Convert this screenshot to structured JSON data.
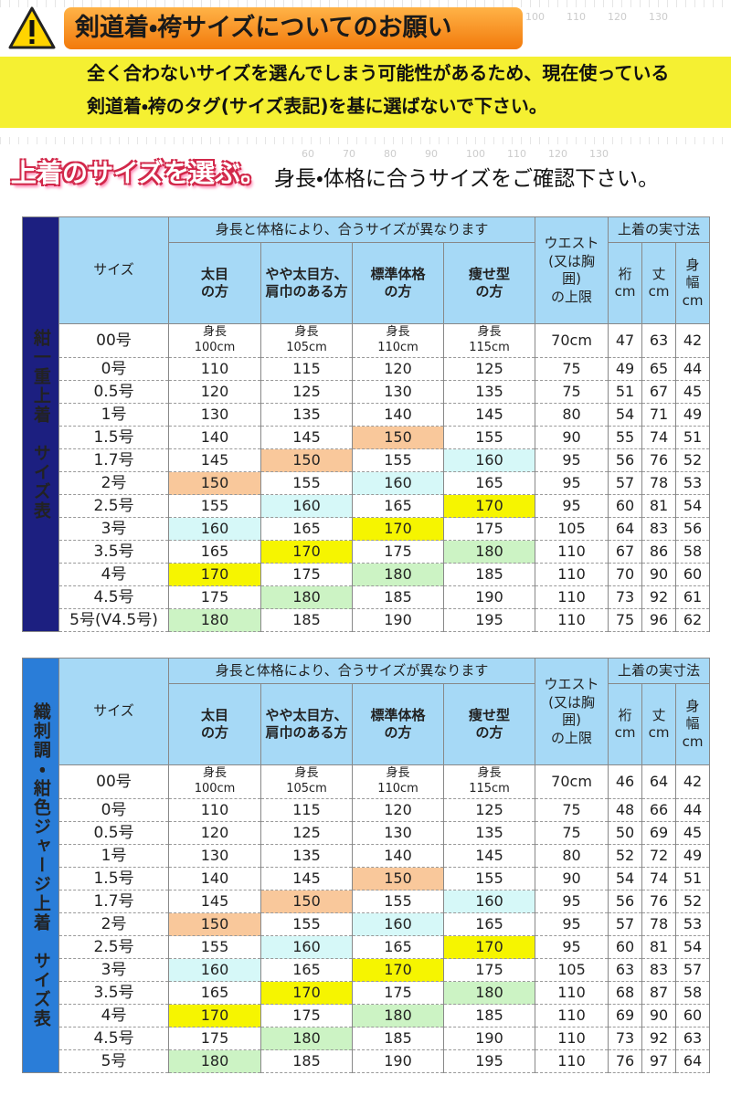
{
  "header": {
    "title": "剣道着・袴サイズについてのお願い",
    "notice": [
      "全く合わないサイズを選んでしまう可能性があるため、現在使っている",
      "剣道着・袴のタグ(サイズ表記)を基に選ばないで下さい。"
    ]
  },
  "rulers": {
    "top": [
      100,
      110,
      120,
      130
    ],
    "middle": [
      60,
      70,
      80,
      90,
      100,
      110,
      120,
      130
    ]
  },
  "section": {
    "label": "上着のサイズを選ぶ。",
    "text": "身長・体格に合うサイズをご確認下さい。"
  },
  "highlights": [
    {
      "value": 150,
      "color": "#f9c89b"
    },
    {
      "value": 160,
      "color": "#d6f8f8"
    },
    {
      "value": 170,
      "color": "#f6f500"
    },
    {
      "value": 180,
      "color": "#ccf3c4"
    }
  ],
  "tables": [
    {
      "side": "紺一重上着　サイズ表",
      "side_color": "#1c1f80",
      "size_header": "サイズ",
      "group_header": "身長と体格により、合うサイズが異なります",
      "body_types": [
        [
          "太目",
          "の方"
        ],
        [
          "やや太目方、",
          "肩巾のある方"
        ],
        [
          "標準体格",
          "の方"
        ],
        [
          "痩せ型",
          "の方"
        ]
      ],
      "waist_header": [
        "ウエスト",
        "(又は胸",
        "囲)",
        "の上限"
      ],
      "measure_header": "上着の実寸法",
      "measures": [
        [
          "裄",
          "cm"
        ],
        [
          "丈",
          "cm"
        ],
        [
          "身",
          "幅",
          "cm"
        ]
      ],
      "rows": [
        [
          "00号",
          [
            "身長",
            "100cm"
          ],
          [
            "身長",
            "105cm"
          ],
          [
            "身長",
            "110cm"
          ],
          [
            "身長",
            "115cm"
          ],
          "70cm",
          47,
          63,
          42
        ],
        [
          "0号",
          110,
          115,
          120,
          125,
          75,
          49,
          65,
          44
        ],
        [
          "0.5号",
          120,
          125,
          130,
          135,
          75,
          51,
          67,
          45
        ],
        [
          "1号",
          130,
          135,
          140,
          145,
          80,
          54,
          71,
          49
        ],
        [
          "1.5号",
          140,
          145,
          150,
          155,
          90,
          55,
          74,
          51
        ],
        [
          "1.7号",
          145,
          150,
          155,
          160,
          95,
          56,
          76,
          52
        ],
        [
          "2号",
          150,
          155,
          160,
          165,
          95,
          57,
          78,
          53
        ],
        [
          "2.5号",
          155,
          160,
          165,
          170,
          95,
          60,
          81,
          54
        ],
        [
          "3号",
          160,
          165,
          170,
          175,
          105,
          64,
          83,
          56
        ],
        [
          "3.5号",
          165,
          170,
          175,
          180,
          110,
          67,
          86,
          58
        ],
        [
          "4号",
          170,
          175,
          180,
          185,
          110,
          70,
          90,
          60
        ],
        [
          "4.5号",
          175,
          180,
          185,
          190,
          110,
          73,
          92,
          61
        ],
        [
          "5号(V4.5号)",
          180,
          185,
          190,
          195,
          110,
          75,
          96,
          62
        ]
      ]
    },
    {
      "side": "織刺調・紺色ジャージ上着　サイズ表",
      "side_color": "#2a7dd8",
      "size_header": "サイズ",
      "group_header": "身長と体格により、合うサイズが異なります",
      "body_types": [
        [
          "太目",
          "の方"
        ],
        [
          "やや太目方、",
          "肩巾のある方"
        ],
        [
          "標準体格",
          "の方"
        ],
        [
          "痩せ型",
          "の方"
        ]
      ],
      "waist_header": [
        "ウエスト",
        "(又は胸",
        "囲)",
        "の上限"
      ],
      "measure_header": "上着の実寸法",
      "measures": [
        [
          "裄",
          "cm"
        ],
        [
          "丈",
          "cm"
        ],
        [
          "身",
          "幅",
          "cm"
        ]
      ],
      "rows": [
        [
          "00号",
          [
            "身長",
            "100cm"
          ],
          [
            "身長",
            "105cm"
          ],
          [
            "身長",
            "110cm"
          ],
          [
            "身長",
            "115cm"
          ],
          "70cm",
          46,
          64,
          42
        ],
        [
          "0号",
          110,
          115,
          120,
          125,
          75,
          48,
          66,
          44
        ],
        [
          "0.5号",
          120,
          125,
          130,
          135,
          75,
          50,
          69,
          45
        ],
        [
          "1号",
          130,
          135,
          140,
          145,
          80,
          52,
          72,
          49
        ],
        [
          "1.5号",
          140,
          145,
          150,
          155,
          90,
          54,
          74,
          51
        ],
        [
          "1.7号",
          145,
          150,
          155,
          160,
          95,
          56,
          76,
          52
        ],
        [
          "2号",
          150,
          155,
          160,
          165,
          95,
          57,
          78,
          53
        ],
        [
          "2.5号",
          155,
          160,
          165,
          170,
          95,
          60,
          81,
          54
        ],
        [
          "3号",
          160,
          165,
          170,
          175,
          105,
          63,
          83,
          57
        ],
        [
          "3.5号",
          165,
          170,
          175,
          180,
          110,
          68,
          87,
          58
        ],
        [
          "4号",
          170,
          175,
          180,
          185,
          110,
          69,
          90,
          60
        ],
        [
          "4.5号",
          175,
          180,
          185,
          190,
          110,
          73,
          92,
          63
        ],
        [
          "5号",
          180,
          185,
          190,
          195,
          110,
          76,
          97,
          64
        ]
      ]
    }
  ]
}
